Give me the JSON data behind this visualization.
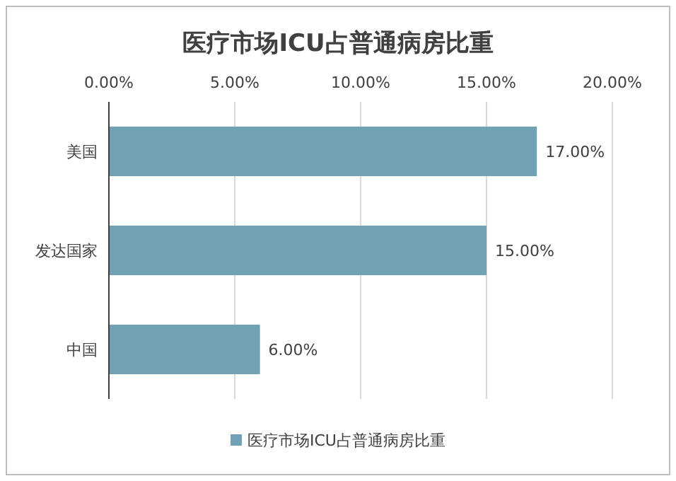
{
  "chart_data": {
    "type": "bar",
    "orientation": "horizontal",
    "title": "医疗市场ICU占普通病房比重",
    "categories": [
      "美国",
      "发达国家",
      "中国"
    ],
    "series": [
      {
        "name": "医疗市场ICU占普通病房比重",
        "color": "#71a1b5",
        "values": [
          17,
          15,
          6
        ],
        "value_labels": [
          "17.00%",
          "15.00%",
          "6.00%"
        ]
      }
    ],
    "xlim": [
      0,
      20
    ],
    "xticks": [
      {
        "value": 0,
        "label": "0.00%"
      },
      {
        "value": 5,
        "label": "5.00%"
      },
      {
        "value": 10,
        "label": "10.00%"
      },
      {
        "value": 15,
        "label": "15.00%"
      },
      {
        "value": 20,
        "label": "20.00%"
      }
    ],
    "grid": "x",
    "legend": "bottom"
  }
}
